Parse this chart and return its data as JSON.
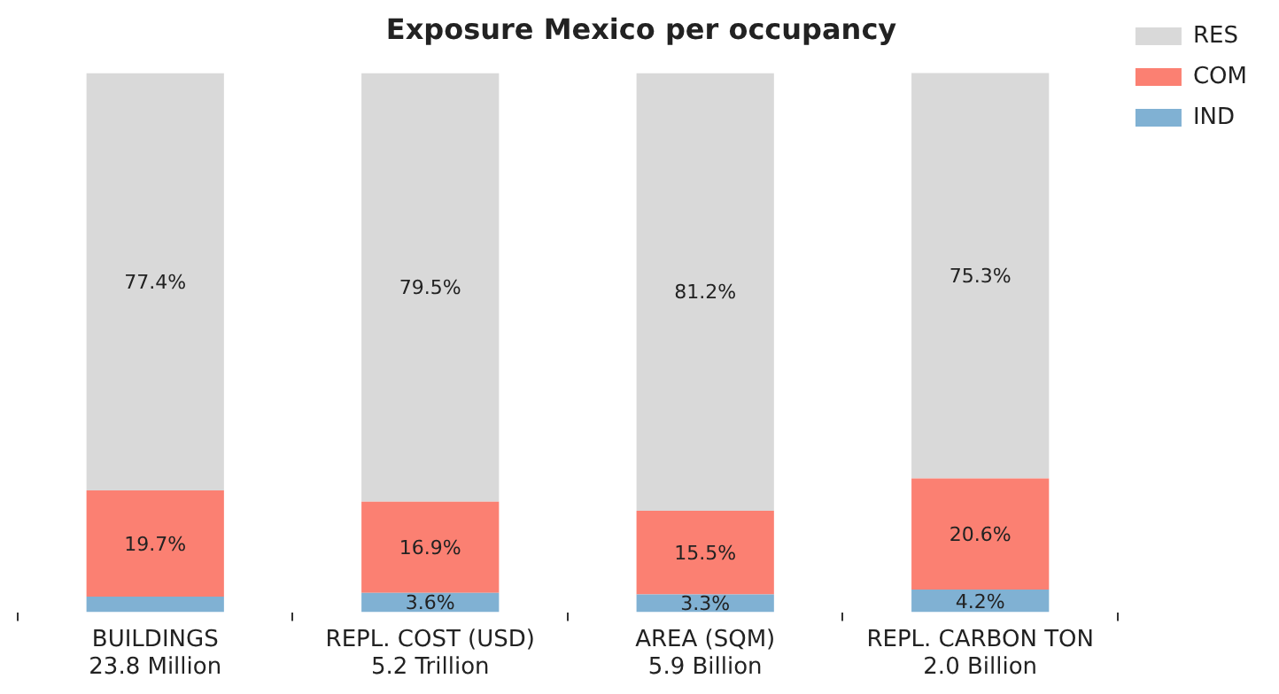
{
  "chart_data": {
    "type": "bar",
    "title": "Exposure Mexico per occupancy",
    "categories": [
      "BUILDINGS\n23.8 Million",
      "REPL. COST (USD)\n5.2 Trillion",
      "AREA (SQM)\n5.9 Billion",
      "REPL. CARBON TON\n2.0 Billion"
    ],
    "series": [
      {
        "name": "IND",
        "color": "#80b1d3",
        "values": [
          2.9,
          3.6,
          3.3,
          4.2
        ],
        "value_labels": [
          null,
          "3.6%",
          "3.3%",
          "4.2%"
        ]
      },
      {
        "name": "COM",
        "color": "#fb8072",
        "values": [
          19.7,
          16.9,
          15.5,
          20.6
        ],
        "value_labels": [
          "19.7%",
          "16.9%",
          "15.5%",
          "20.6%"
        ]
      },
      {
        "name": "RES",
        "color": "#d9d9d9",
        "values": [
          77.4,
          79.5,
          81.2,
          75.3
        ],
        "value_labels": [
          "77.4%",
          "79.5%",
          "81.2%",
          "75.3%"
        ]
      }
    ],
    "stacked": true,
    "ylim": [
      0,
      100
    ],
    "tick_labels": "x",
    "grid": false,
    "legend": "top right"
  }
}
